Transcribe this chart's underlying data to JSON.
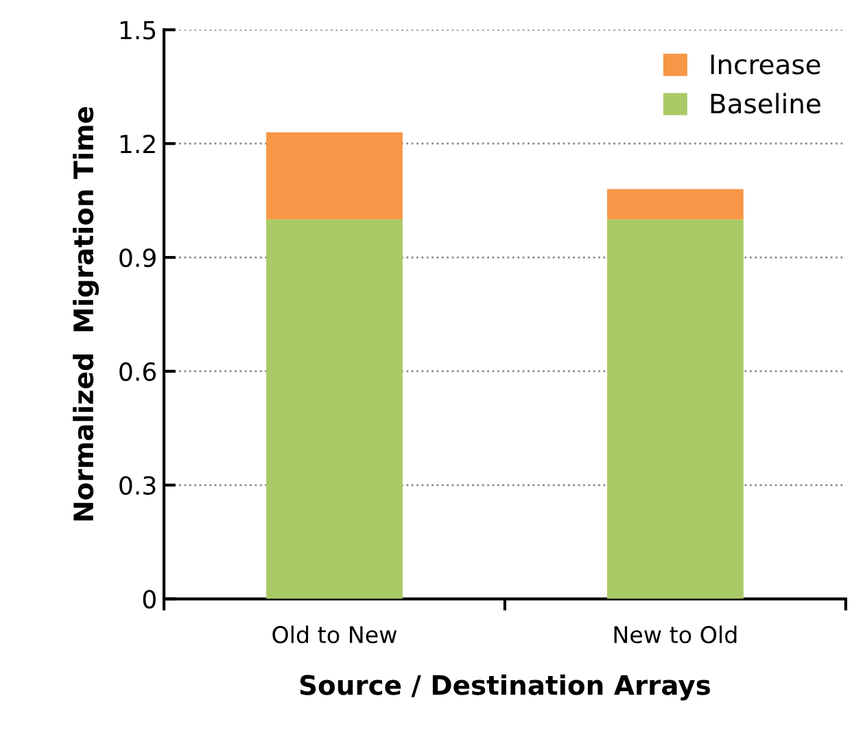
{
  "chart_data": {
    "type": "bar",
    "stacked": true,
    "xlabel": "Source / Destination Arrays",
    "ylabel": "Normalized  Migration Time",
    "categories": [
      "Old to New",
      "New to Old"
    ],
    "series": [
      {
        "name": "Baseline",
        "color": "#a9c966",
        "values": [
          1.0,
          1.0
        ]
      },
      {
        "name": "Increase",
        "color": "#f79646",
        "values": [
          0.23,
          0.08
        ]
      }
    ],
    "ylim": [
      0,
      1.5
    ],
    "yticks": [
      0,
      0.3,
      0.6,
      0.9,
      1.2,
      1.5
    ],
    "grid": "y",
    "legend": "top right"
  }
}
